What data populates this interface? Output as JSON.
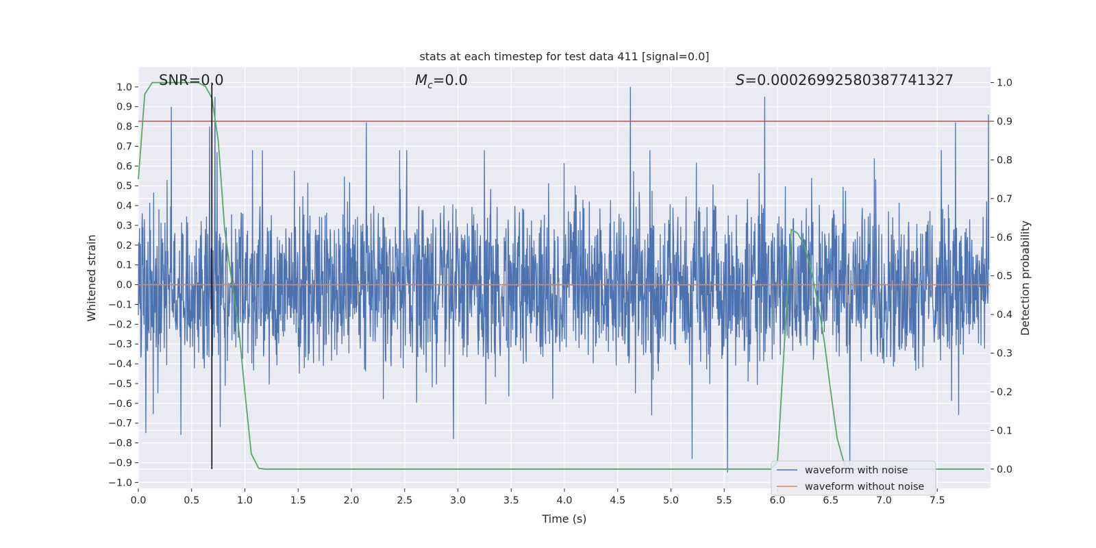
{
  "chart_data": {
    "type": "line",
    "title": "stats at each timestep for test data 411 [signal=0.0]",
    "xlabel": "Time (s)",
    "ylabel_left": "Whitened strain",
    "ylabel_right": "Detection probability",
    "xlim": [
      0.0,
      8.0
    ],
    "ylim_left": [
      -1.03,
      1.1
    ],
    "ylim_right": [
      -0.05,
      1.04
    ],
    "x_ticks": [
      "0.0",
      "0.5",
      "1.0",
      "1.5",
      "2.0",
      "2.5",
      "3.0",
      "3.5",
      "4.0",
      "4.5",
      "5.0",
      "5.5",
      "6.0",
      "6.5",
      "7.0",
      "7.5"
    ],
    "y_ticks_left": [
      "1.0",
      "0.9",
      "0.8",
      "0.7",
      "0.6",
      "0.5",
      "0.4",
      "0.3",
      "0.2",
      "0.1",
      "0.0",
      "−0.1",
      "−0.2",
      "−0.3",
      "−0.4",
      "−0.5",
      "−0.6",
      "−0.7",
      "−0.8",
      "−0.9",
      "−1.0"
    ],
    "y_ticks_right": [
      "1.0",
      "0.9",
      "0.8",
      "0.7",
      "0.6",
      "0.5",
      "0.4",
      "0.3",
      "0.2",
      "0.1",
      "0.0"
    ],
    "grid": true,
    "annotations": {
      "snr": "SNR=0.0",
      "mc_symbol": "M",
      "mc_sub": "c",
      "mc_value": "=0.0",
      "s_symbol": "S",
      "s_value": "=0.00026992580387741327"
    },
    "legend": {
      "location": "lower-right",
      "entries": [
        "waveform with noise",
        "waveform without noise"
      ]
    },
    "threshold_line": {
      "axis": "right",
      "value": 0.9,
      "color": "#c44e52"
    },
    "vertical_line": {
      "x": 0.69,
      "color": "#000000"
    },
    "series": [
      {
        "name": "waveform with noise",
        "axis": "left",
        "color": "#4c72b0",
        "description": "dense whitened strain noise, envelope about ±0.35 with spikes",
        "spikes": [
          {
            "x": 0.07,
            "y": -0.75
          },
          {
            "x": 0.31,
            "y": 0.9
          },
          {
            "x": 0.4,
            "y": -0.76
          },
          {
            "x": 0.67,
            "y": 0.8
          },
          {
            "x": 0.72,
            "y": 0.95
          },
          {
            "x": 0.77,
            "y": -0.72
          },
          {
            "x": 2.14,
            "y": 0.82
          },
          {
            "x": 2.96,
            "y": -0.78
          },
          {
            "x": 4.62,
            "y": 1.0
          },
          {
            "x": 5.2,
            "y": -0.88
          },
          {
            "x": 5.53,
            "y": -0.95
          },
          {
            "x": 5.88,
            "y": 0.95
          },
          {
            "x": 6.68,
            "y": -0.92
          },
          {
            "x": 7.67,
            "y": 0.82
          },
          {
            "x": 7.98,
            "y": 0.86
          }
        ]
      },
      {
        "name": "waveform without noise",
        "axis": "left",
        "color": "#dd8452",
        "x": [
          0.0,
          8.0
        ],
        "y": [
          0.0,
          0.0
        ]
      },
      {
        "name": "detection probability",
        "axis": "right",
        "color": "#55a868",
        "x": [
          0.0,
          0.06,
          0.13,
          0.25,
          0.38,
          0.5,
          0.56,
          0.63,
          0.69,
          0.75,
          0.81,
          0.88,
          0.94,
          1.0,
          1.06,
          1.13,
          1.19,
          1.3,
          1.5,
          2.0,
          3.0,
          4.0,
          5.0,
          5.5,
          5.94,
          6.0,
          6.06,
          6.13,
          6.19,
          6.25,
          6.31,
          6.38,
          6.44,
          6.5,
          6.56,
          6.63,
          6.69,
          6.75,
          7.0,
          7.5,
          7.94
        ],
        "y": [
          0.75,
          0.97,
          1.0,
          1.0,
          1.0,
          1.0,
          1.0,
          0.99,
          0.96,
          0.85,
          0.62,
          0.48,
          0.37,
          0.2,
          0.04,
          0.002,
          0.0,
          0.0,
          0.0,
          0.0,
          0.0,
          0.0,
          0.0,
          0.0,
          0.0,
          0.02,
          0.3,
          0.62,
          0.61,
          0.58,
          0.52,
          0.43,
          0.33,
          0.2,
          0.08,
          0.01,
          0.0,
          0.0,
          0.0,
          0.0,
          0.0
        ]
      }
    ]
  }
}
